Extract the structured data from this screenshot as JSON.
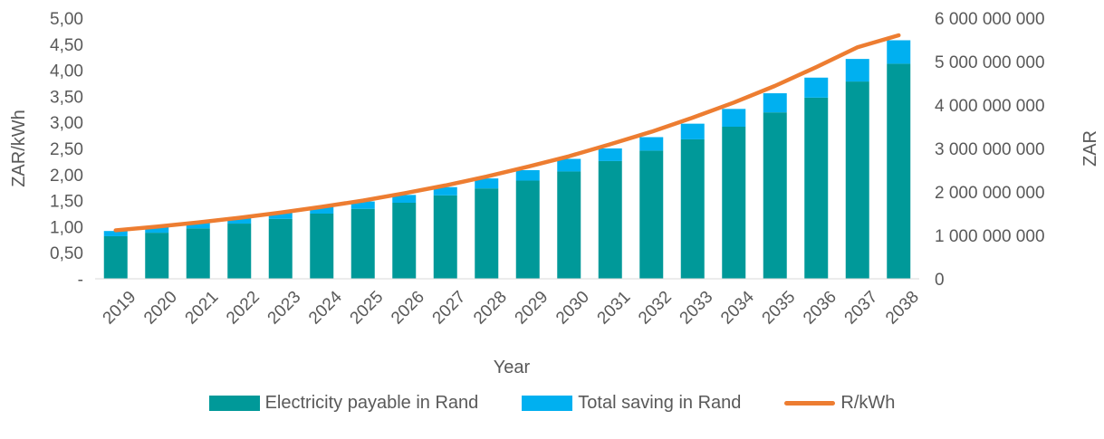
{
  "chart_data": {
    "type": "bar",
    "stacked": true,
    "xlabel": "Year",
    "ylabel_left": "ZAR/kWh",
    "ylabel_right": "ZAR",
    "categories": [
      "2019",
      "2020",
      "2021",
      "2022",
      "2023",
      "2024",
      "2025",
      "2026",
      "2027",
      "2028",
      "2029",
      "2030",
      "2031",
      "2032",
      "2033",
      "2034",
      "2035",
      "2036",
      "2037",
      "2038"
    ],
    "left_axis": {
      "ylim": [
        0,
        5
      ],
      "ticks": [
        0,
        0.5,
        1,
        1.5,
        2,
        2.5,
        3,
        3.5,
        4,
        4.5,
        5
      ],
      "tick_labels": [
        "-",
        "0,50",
        "1,00",
        "1,50",
        "2,00",
        "2,50",
        "3,00",
        "3,50",
        "4,00",
        "4,50",
        "5,00"
      ]
    },
    "right_axis": {
      "ylim": [
        0,
        6000000000
      ],
      "ticks": [
        0,
        1000000000,
        2000000000,
        3000000000,
        4000000000,
        5000000000,
        6000000000
      ],
      "tick_labels": [
        "0",
        "1 000 000 000",
        "2 000 000 000",
        "3 000 000 000",
        "4 000 000 000",
        "5 000 000 000",
        "6 000 000 000"
      ]
    },
    "series": [
      {
        "name": "Electricity payable in Rand",
        "kind": "bar",
        "axis": "right",
        "color": "#009999",
        "values": [
          980000000,
          1060000000,
          1160000000,
          1270000000,
          1380000000,
          1500000000,
          1610000000,
          1750000000,
          1920000000,
          2080000000,
          2260000000,
          2470000000,
          2710000000,
          2950000000,
          3210000000,
          3500000000,
          3830000000,
          4170000000,
          4540000000,
          4950000000
        ]
      },
      {
        "name": "Total saving in Rand",
        "kind": "bar",
        "axis": "right",
        "color": "#00B0F0",
        "values": [
          120000000,
          130000000,
          130000000,
          140000000,
          140000000,
          150000000,
          170000000,
          180000000,
          190000000,
          230000000,
          240000000,
          290000000,
          290000000,
          310000000,
          360000000,
          410000000,
          440000000,
          460000000,
          520000000,
          540000000
        ]
      },
      {
        "name": "R/kWh",
        "kind": "line",
        "axis": "left",
        "color": "#ED7D31",
        "values": [
          0.93,
          1.0,
          1.08,
          1.17,
          1.27,
          1.38,
          1.5,
          1.64,
          1.79,
          1.96,
          2.15,
          2.35,
          2.58,
          2.82,
          3.09,
          3.38,
          3.7,
          4.06,
          4.44,
          4.67
        ]
      }
    ],
    "legend_position": "bottom",
    "grid": false
  }
}
